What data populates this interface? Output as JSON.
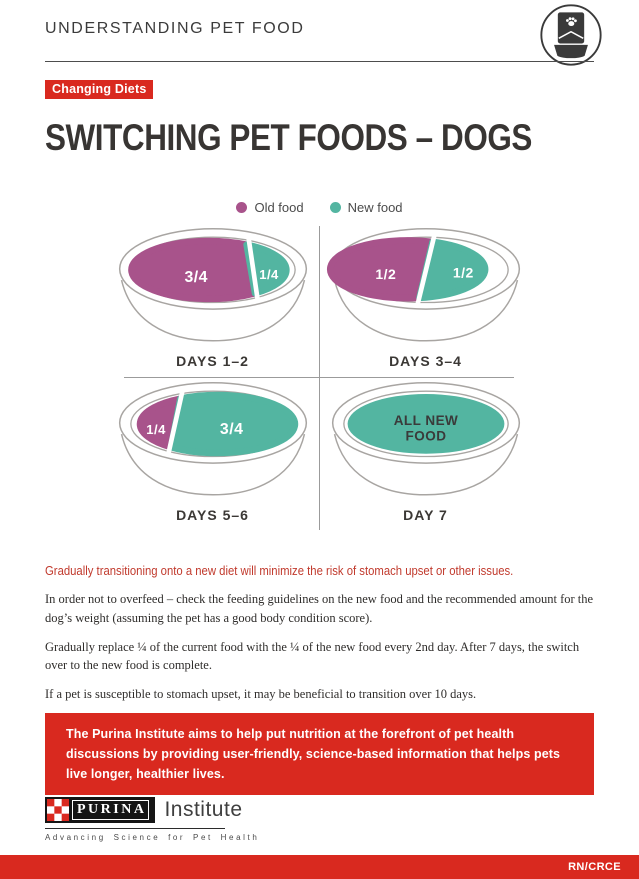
{
  "header": {
    "title": "UNDERSTANDING PET FOOD"
  },
  "badge": {
    "label": "Changing Diets"
  },
  "page_title": "SWITCHING PET FOODS – DOGS",
  "legend": {
    "old": {
      "label": "Old food",
      "color": "#a8538b"
    },
    "new": {
      "label": "New food",
      "color": "#53b5a1"
    }
  },
  "diagram": {
    "bowls": [
      {
        "caption": "DAYS 1–2",
        "layout": "old34",
        "segments": [
          {
            "label": "3/4",
            "food": "old"
          },
          {
            "label": "1/4",
            "food": "new"
          }
        ]
      },
      {
        "caption": "DAYS 3–4",
        "layout": "half",
        "segments": [
          {
            "label": "1/2",
            "food": "old"
          },
          {
            "label": "1/2",
            "food": "new"
          }
        ]
      },
      {
        "caption": "DAYS 5–6",
        "layout": "new34",
        "segments": [
          {
            "label": "1/4",
            "food": "old"
          },
          {
            "label": "3/4",
            "food": "new"
          }
        ]
      },
      {
        "caption": "DAY 7",
        "layout": "all",
        "segments": [
          {
            "label": "ALL NEW\nFOOD",
            "food": "new"
          }
        ]
      }
    ]
  },
  "lead": "Gradually transitioning onto a new diet will minimize the risk of stomach upset or other issues.",
  "paragraphs": [
    "In order not to overfeed – check the feeding guidelines on the new food and the recommended amount for the dog’s weight (assuming the pet has a good body condition score).",
    "Gradually replace ¼ of the current food with the ¼ of the new food every 2nd day. After 7 days, the switch over to the new food is complete.",
    "If a pet is susceptible to stomach upset, it may be beneficial to transition over 10 days."
  ],
  "callout": "The Purina Institute aims to help put nutrition at the forefront of pet health discussions by providing user-friendly, science-based information that helps pets live longer, healthier lives.",
  "footer": {
    "brand": "PURINA",
    "brand_suffix": "Institute",
    "tagline": "Advancing Science for Pet Health",
    "code": "RN/CRCE"
  },
  "colors": {
    "purina_red": "#d9291f",
    "lead_red": "#c13a2d",
    "old_food": "#a8538b",
    "new_food": "#53b5a1",
    "dark_text": "#3b3835",
    "bowl_outline": "#a8a5a2"
  }
}
